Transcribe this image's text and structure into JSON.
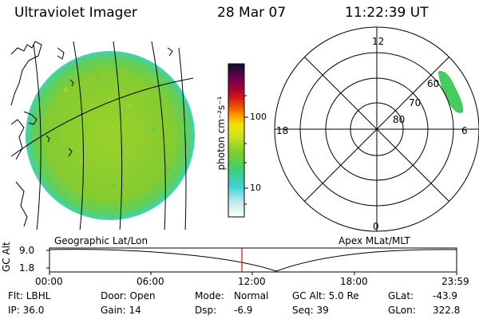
{
  "header": {
    "title": "Ultraviolet Imager",
    "date": "28 Mar 07",
    "time": "11:22:39 UT"
  },
  "colorbar": {
    "unit_label": "photon cm⁻²s⁻¹",
    "ticks": [
      "100",
      "10"
    ]
  },
  "polar_plot": {
    "mlt_labels": {
      "top": "12",
      "left": "18",
      "right": "6",
      "bottom": "0"
    },
    "lat_labels": [
      "60",
      "70",
      "80"
    ]
  },
  "panel_labels": {
    "left": "Geographic Lat/Lon",
    "right": "Apex MLat/MLT"
  },
  "timeline": {
    "y_axis_label": "GC Alt",
    "y_ticks": [
      "9.0",
      "1.8"
    ],
    "x_ticks": [
      "00:00",
      "06:00",
      "12:00",
      "18:00",
      "23:59"
    ],
    "current_time_marker": "11:22:39"
  },
  "info": {
    "row1": {
      "flt": "Flt: LBHL",
      "door": "Door: Open",
      "mode_label": "Mode:",
      "mode_value": "Normal",
      "gcalt": "GC Alt: 5.0 Re",
      "glat_label": "GLat:",
      "glat_value": "-43.9"
    },
    "row2": {
      "ip": "IP: 36.0",
      "gain": "Gain: 14",
      "dsp_label": "Dsp:",
      "dsp_value": "-6.9",
      "seq": "Seq: 39",
      "glon_label": "GLon:",
      "glon_value": "322.8"
    }
  },
  "colors": {
    "disk_fill": "#8ccd2c",
    "disk_rim": "#46d2a0",
    "marker": "#d01010"
  }
}
